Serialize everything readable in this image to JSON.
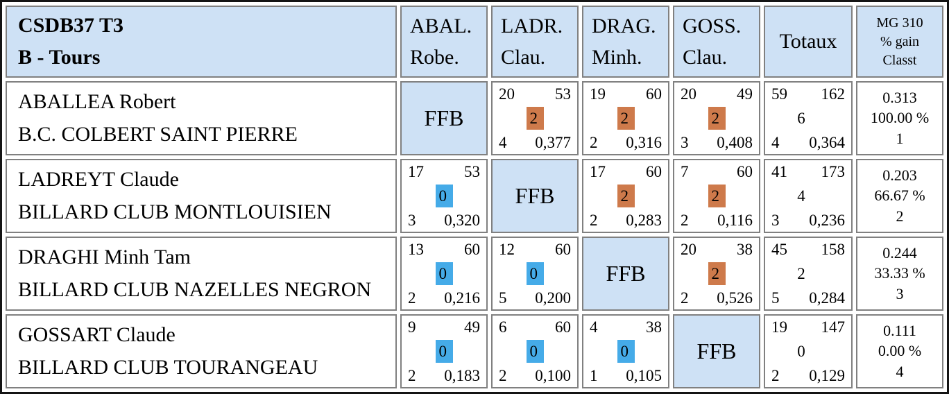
{
  "title": {
    "line1": "CSDB37 T3",
    "line2": "B - Tours"
  },
  "columns": [
    {
      "line1": "ABAL.",
      "line2": "Robe."
    },
    {
      "line1": "LADR.",
      "line2": "Clau."
    },
    {
      "line1": "DRAG.",
      "line2": "Minh."
    },
    {
      "line1": "GOSS.",
      "line2": "Clau."
    }
  ],
  "totals_header": "Totaux",
  "ranking_header": {
    "line1": "MG 310",
    "line2": "% gain",
    "line3": "Classt"
  },
  "ffb_label": "FFB",
  "colors": {
    "header_bg": "#cee1f5",
    "win_badge": "#ce7a4b",
    "loss_badge": "#45abe8",
    "cell_border": "#808080",
    "outer_border": "#141414"
  },
  "rows": [
    {
      "name": "ABALLEA Robert",
      "club": "B.C. COLBERT SAINT PIERRE",
      "matches": [
        {
          "type": "self"
        },
        {
          "type": "match",
          "points": "20",
          "innings": "53",
          "match_points": "2",
          "result": "win",
          "high_run": "4",
          "average": "0,377"
        },
        {
          "type": "match",
          "points": "19",
          "innings": "60",
          "match_points": "2",
          "result": "win",
          "high_run": "2",
          "average": "0,316"
        },
        {
          "type": "match",
          "points": "20",
          "innings": "49",
          "match_points": "2",
          "result": "win",
          "high_run": "3",
          "average": "0,408"
        }
      ],
      "totals": {
        "points": "59",
        "innings": "162",
        "match_points": "6",
        "high_run": "4",
        "average": "0,364"
      },
      "ranking": {
        "general_average": "0.313",
        "win_percent": "100.00 %",
        "rank": "1"
      }
    },
    {
      "name": "LADREYT Claude",
      "club": "BILLARD CLUB MONTLOUISIEN",
      "matches": [
        {
          "type": "match",
          "points": "17",
          "innings": "53",
          "match_points": "0",
          "result": "loss",
          "high_run": "3",
          "average": "0,320"
        },
        {
          "type": "self"
        },
        {
          "type": "match",
          "points": "17",
          "innings": "60",
          "match_points": "2",
          "result": "win",
          "high_run": "2",
          "average": "0,283"
        },
        {
          "type": "match",
          "points": "7",
          "innings": "60",
          "match_points": "2",
          "result": "win",
          "high_run": "2",
          "average": "0,116"
        }
      ],
      "totals": {
        "points": "41",
        "innings": "173",
        "match_points": "4",
        "high_run": "3",
        "average": "0,236"
      },
      "ranking": {
        "general_average": "0.203",
        "win_percent": "66.67 %",
        "rank": "2"
      }
    },
    {
      "name": "DRAGHI Minh Tam",
      "club": "BILLARD CLUB NAZELLES NEGRON",
      "matches": [
        {
          "type": "match",
          "points": "13",
          "innings": "60",
          "match_points": "0",
          "result": "loss",
          "high_run": "2",
          "average": "0,216"
        },
        {
          "type": "match",
          "points": "12",
          "innings": "60",
          "match_points": "0",
          "result": "loss",
          "high_run": "5",
          "average": "0,200"
        },
        {
          "type": "self"
        },
        {
          "type": "match",
          "points": "20",
          "innings": "38",
          "match_points": "2",
          "result": "win",
          "high_run": "2",
          "average": "0,526"
        }
      ],
      "totals": {
        "points": "45",
        "innings": "158",
        "match_points": "2",
        "high_run": "5",
        "average": "0,284"
      },
      "ranking": {
        "general_average": "0.244",
        "win_percent": "33.33 %",
        "rank": "3"
      }
    },
    {
      "name": "GOSSART Claude",
      "club": "BILLARD CLUB TOURANGEAU",
      "matches": [
        {
          "type": "match",
          "points": "9",
          "innings": "49",
          "match_points": "0",
          "result": "loss",
          "high_run": "2",
          "average": "0,183"
        },
        {
          "type": "match",
          "points": "6",
          "innings": "60",
          "match_points": "0",
          "result": "loss",
          "high_run": "2",
          "average": "0,100"
        },
        {
          "type": "match",
          "points": "4",
          "innings": "38",
          "match_points": "0",
          "result": "loss",
          "high_run": "1",
          "average": "0,105"
        },
        {
          "type": "self"
        }
      ],
      "totals": {
        "points": "19",
        "innings": "147",
        "match_points": "0",
        "high_run": "2",
        "average": "0,129"
      },
      "ranking": {
        "general_average": "0.111",
        "win_percent": "0.00 %",
        "rank": "4"
      }
    }
  ]
}
